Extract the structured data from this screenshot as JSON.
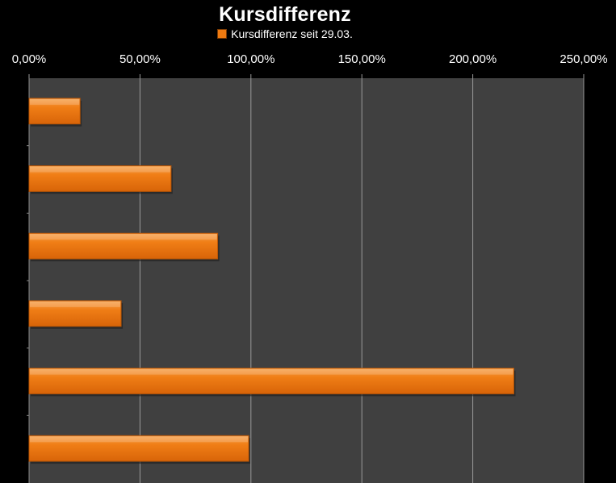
{
  "chart_data": {
    "type": "bar",
    "orientation": "horizontal",
    "title": "Kursdifferenz",
    "legend": {
      "position": "top",
      "entries": [
        "Kursdifferenz seit 29.03."
      ]
    },
    "series": [
      {
        "name": "Kursdifferenz seit 29.03.",
        "color": "#ef7a10",
        "values": [
          0.23,
          0.64,
          0.85,
          0.415,
          2.185,
          0.99
        ]
      }
    ],
    "xlim": [
      0,
      2.5
    ],
    "x_ticks": [
      0,
      0.5,
      1.0,
      1.5,
      2.0,
      2.5
    ],
    "x_tick_labels": [
      "0,00%",
      "50,00%",
      "100,00%",
      "150,00%",
      "200,00%",
      "250,00%"
    ],
    "axis_position": "top",
    "grid": true,
    "plot_background": "#404040",
    "page_background": "#000000"
  }
}
